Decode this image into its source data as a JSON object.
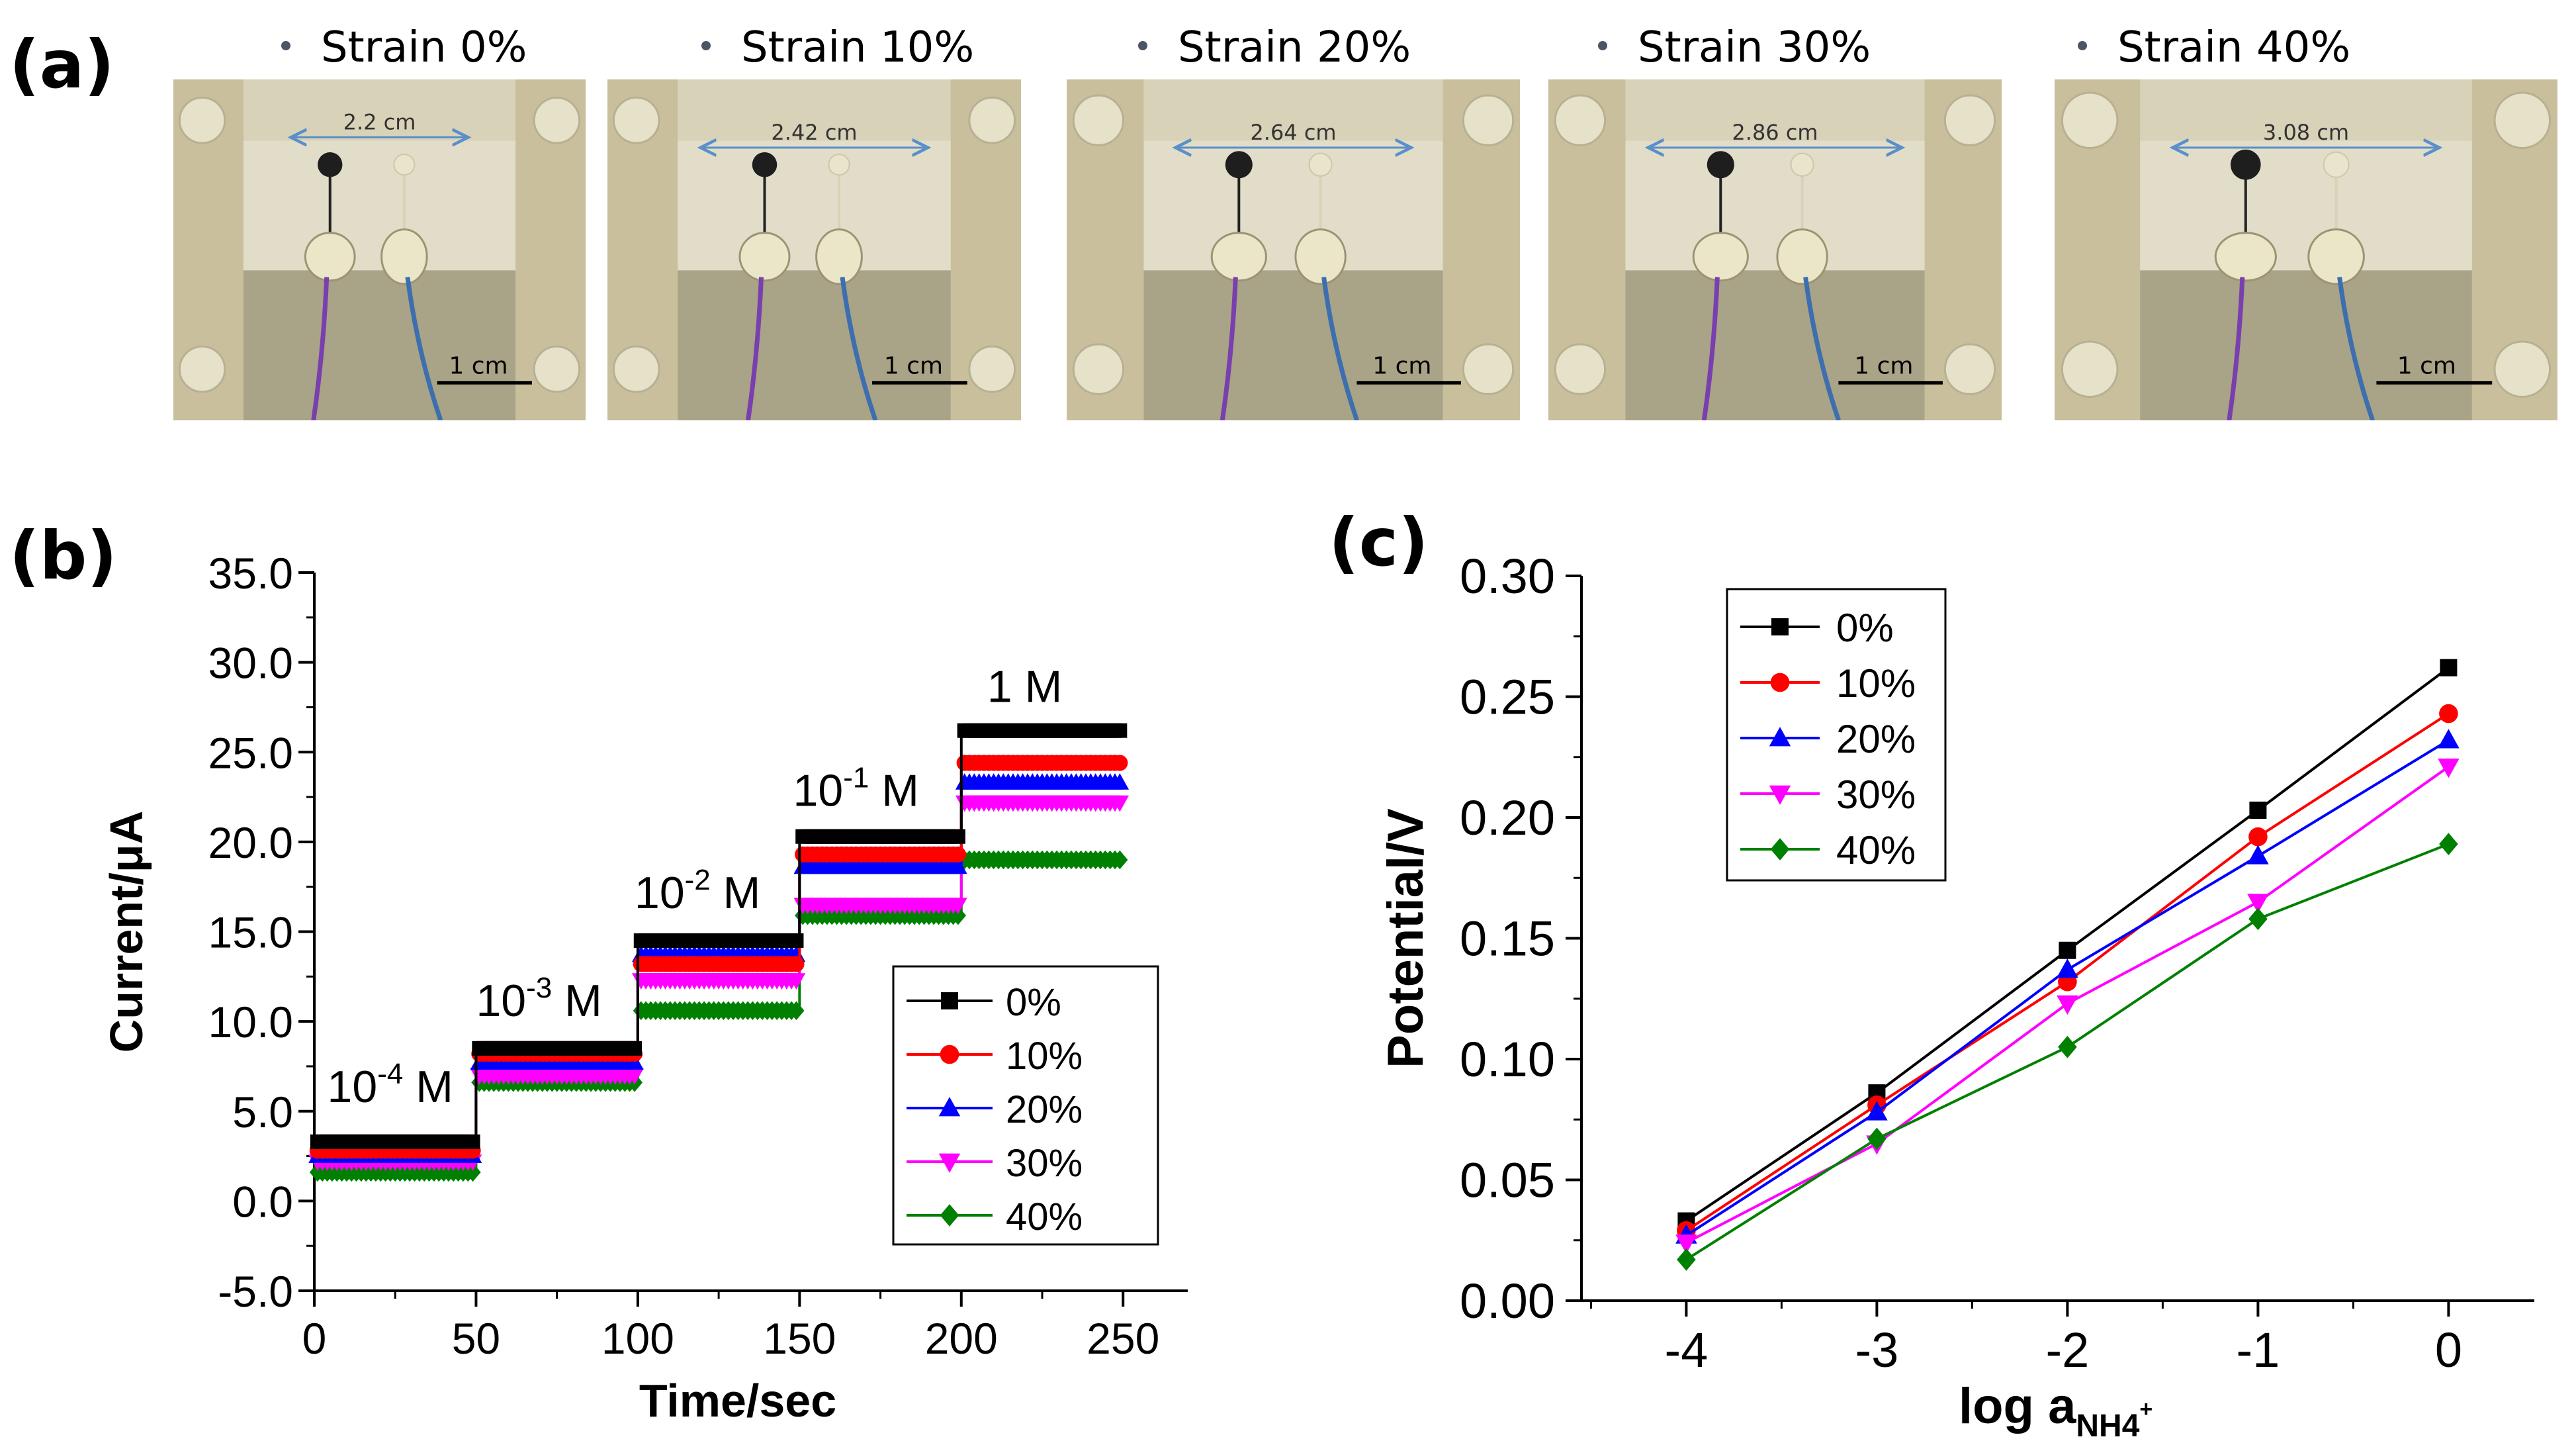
{
  "panels": {
    "a": "(a)",
    "b": "(b)",
    "c": "(c)"
  },
  "photos": [
    {
      "caption": "Strain 0%",
      "span": "2.2 cm",
      "scale": "1 cm"
    },
    {
      "caption": "Strain 10%",
      "span": "2.42 cm",
      "scale": "1 cm"
    },
    {
      "caption": "Strain 20%",
      "span": "2.64 cm",
      "scale": "1 cm"
    },
    {
      "caption": "Strain 30%",
      "span": "2.86 cm",
      "scale": "1 cm"
    },
    {
      "caption": "Strain 40%",
      "span": "3.08 cm",
      "scale": "1 cm"
    }
  ],
  "colors": {
    "s0": "#000000",
    "s10": "#ff0000",
    "s20": "#0000ff",
    "s30": "#ff00ff",
    "s40": "#008000",
    "wire_purple": "#7a3fae",
    "wire_blue": "#3d6fae"
  },
  "chart_data": [
    {
      "type": "line",
      "title": "",
      "xlabel": "Time/sec",
      "ylabel": "Current/μA",
      "xlim": [
        0,
        270
      ],
      "ylim": [
        -5,
        35
      ],
      "xticks": [
        "0",
        "50",
        "100",
        "150",
        "200",
        "250"
      ],
      "yticks": [
        "-5.0",
        "0.0",
        "5.0",
        "10.0",
        "15.0",
        "20.0",
        "25.0",
        "30.0",
        "35.0"
      ],
      "step_edges": [
        0,
        50,
        100,
        150,
        200,
        250
      ],
      "series": [
        {
          "name": "0%",
          "marker": "square",
          "values": [
            3.3,
            8.5,
            14.5,
            20.3,
            26.2
          ]
        },
        {
          "name": "10%",
          "marker": "circle",
          "values": [
            2.8,
            8.2,
            13.2,
            19.3,
            24.4
          ]
        },
        {
          "name": "20%",
          "marker": "triangle",
          "values": [
            2.5,
            7.7,
            13.7,
            18.6,
            23.3
          ]
        },
        {
          "name": "30%",
          "marker": "tri-down",
          "values": [
            2.2,
            7.0,
            12.3,
            16.5,
            22.2
          ]
        },
        {
          "name": "40%",
          "marker": "diamond",
          "values": [
            1.6,
            6.6,
            10.6,
            15.9,
            19.0
          ]
        }
      ],
      "annotations": [
        {
          "base": "10",
          "sup": "-4",
          "unit": "M",
          "x": 4,
          "y": 5.5
        },
        {
          "base": "10",
          "sup": "-3",
          "unit": "M",
          "x": 50,
          "y": 10.3
        },
        {
          "base": "10",
          "sup": "-2",
          "unit": "M",
          "x": 99,
          "y": 16.3
        },
        {
          "base": "10",
          "sup": "-1",
          "unit": "M",
          "x": 148,
          "y": 22.0
        },
        {
          "base": "",
          "sup": "",
          "unit": "1 M",
          "x": 208,
          "y": 27.8
        }
      ],
      "legend_position": "bottom-right"
    },
    {
      "type": "line",
      "title": "",
      "xlabel_base": "log a",
      "xlabel_sub": "NH4",
      "xlabel_sup": "+",
      "ylabel": "Potential/V",
      "xlim": [
        -4.55,
        0.45
      ],
      "ylim": [
        0.0,
        0.3
      ],
      "x": [
        -4,
        -3,
        -2,
        -1,
        0
      ],
      "xticks": [
        "-4",
        "-3",
        "-2",
        "-1",
        "0"
      ],
      "yticks": [
        "0.00",
        "0.05",
        "0.10",
        "0.15",
        "0.20",
        "0.25",
        "0.30"
      ],
      "series": [
        {
          "name": "0%",
          "marker": "square",
          "values": [
            0.033,
            0.086,
            0.145,
            0.203,
            0.262
          ]
        },
        {
          "name": "10%",
          "marker": "circle",
          "values": [
            0.029,
            0.081,
            0.132,
            0.192,
            0.243
          ]
        },
        {
          "name": "20%",
          "marker": "triangle",
          "values": [
            0.027,
            0.078,
            0.137,
            0.184,
            0.232
          ]
        },
        {
          "name": "30%",
          "marker": "tri-down",
          "values": [
            0.024,
            0.065,
            0.123,
            0.165,
            0.221
          ]
        },
        {
          "name": "40%",
          "marker": "diamond",
          "values": [
            0.017,
            0.067,
            0.105,
            0.158,
            0.189
          ]
        }
      ],
      "legend_position": "top-left"
    }
  ]
}
